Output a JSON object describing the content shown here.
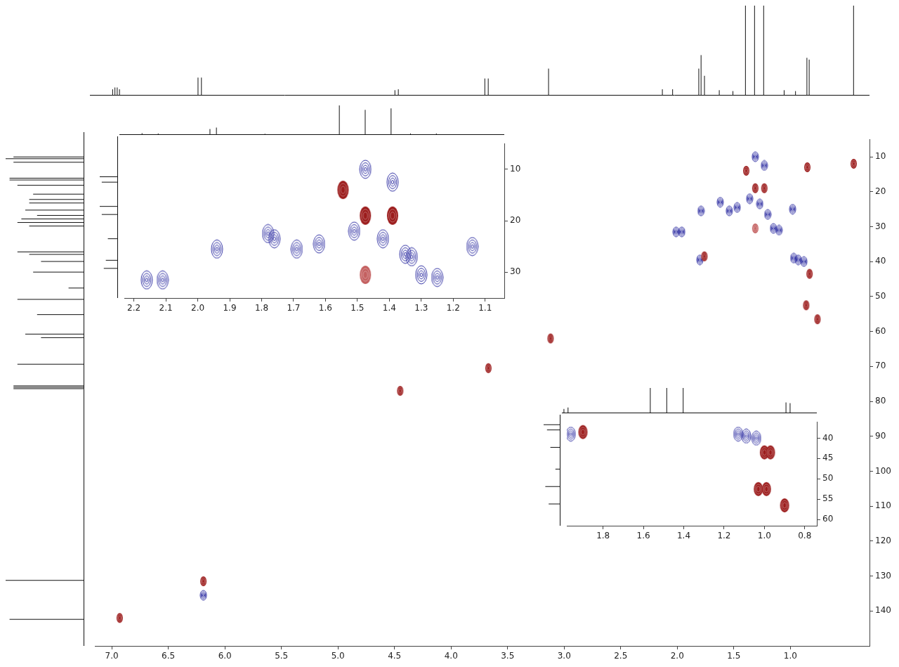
{
  "chart_data": [
    {
      "type": "scatter",
      "grid": false,
      "xlim": [
        7.15,
        0.3
      ],
      "ylim": [
        150,
        5
      ],
      "xticks": [
        {
          "value": 7,
          "label": "7.0"
        },
        6.5,
        {
          "value": 6,
          "label": "6.0"
        },
        5.5,
        {
          "value": 5,
          "label": "5.0"
        },
        4.5,
        {
          "value": 4,
          "label": "4.0"
        },
        3.5,
        {
          "value": 3,
          "label": "3.0"
        },
        2.5,
        {
          "value": 2,
          "label": "2.0"
        },
        1.5,
        {
          "value": 1,
          "label": "1.0"
        }
      ],
      "yticks": [
        10,
        20,
        30,
        40,
        50,
        60,
        70,
        80,
        90,
        100,
        110,
        120,
        130,
        140
      ],
      "series": [
        {
          "color": "#9c1c1c",
          "marker": "filled_ellipse",
          "x": [
            6.93,
            6.19,
            4.45,
            3.67,
            3.12,
            1.76,
            1.39,
            1.31,
            1.23,
            0.85,
            0.44,
            0.83,
            0.86,
            0.76
          ],
          "values": [
            142,
            131.5,
            77,
            70.5,
            62,
            38.5,
            14,
            19,
            19,
            13,
            12,
            43.5,
            52.5,
            56.5
          ]
        },
        {
          "color": "#c46060",
          "marker": "filled_ellipse",
          "x": [
            1.31
          ],
          "values": [
            30.5
          ]
        },
        {
          "color": "#3535a5",
          "marker": "open_ellipse",
          "x": [
            6.19,
            2.01,
            1.96,
            1.79,
            1.62,
            1.54,
            1.47,
            1.36,
            1.27,
            1.2,
            1.15,
            1.1,
            0.98,
            1.31,
            1.23,
            1.8,
            0.97,
            0.93,
            0.88
          ],
          "values": [
            135.5,
            31.5,
            31.5,
            25.5,
            23,
            25.5,
            24.5,
            22,
            23.5,
            26.5,
            30.5,
            31,
            25,
            10,
            12.5,
            39.5,
            39,
            39.5,
            40
          ]
        }
      ],
      "projection_top": {
        "x": [
          6.95,
          6.93,
          6.91,
          6.89,
          6.2,
          6.17,
          4.47,
          4.44,
          3.68,
          3.65,
          3.12,
          2.12,
          2.03,
          1.8,
          1.78,
          1.75,
          1.62,
          1.5,
          1.39,
          1.31,
          1.23,
          1.05,
          0.95,
          0.85,
          0.83,
          0.44
        ],
        "intensity": [
          0.07,
          0.09,
          0.09,
          0.07,
          0.2,
          0.2,
          0.06,
          0.07,
          0.19,
          0.19,
          0.3,
          0.07,
          0.07,
          0.3,
          0.45,
          0.22,
          0.06,
          0.05,
          1,
          1,
          1,
          0.06,
          0.05,
          0.42,
          0.4,
          1
        ]
      },
      "projection_left": {
        "y": [
          142.5,
          131.5,
          77.4,
          77,
          76.6,
          70.5,
          63,
          62,
          56.5,
          52.2,
          49,
          44.5,
          41.5,
          39.5,
          38.8,
          31.5,
          30.5,
          29.5,
          28.5,
          27,
          25,
          24,
          22.5,
          20,
          18.5,
          18,
          13.5,
          12.5,
          12
        ],
        "intensity": [
          0.95,
          1,
          0.9,
          0.9,
          0.9,
          0.85,
          0.55,
          0.75,
          0.6,
          0.85,
          0.2,
          0.65,
          0.55,
          0.7,
          0.85,
          0.7,
          0.85,
          0.8,
          0.6,
          0.75,
          0.7,
          0.7,
          0.65,
          0.85,
          0.95,
          0.95,
          0.9,
          1,
          0.9
        ]
      }
    },
    {
      "type": "scatter",
      "grid": false,
      "xlim": [
        2.23,
        1.04
      ],
      "ylim": [
        35,
        5
      ],
      "xticks": [
        2.2,
        2.1,
        {
          "value": 2,
          "label": "2.0"
        },
        1.9,
        1.8,
        1.7,
        1.6,
        1.5,
        1.4,
        1.3,
        1.2,
        1.1
      ],
      "yticks": [
        10,
        20,
        30
      ],
      "series": [
        {
          "color": "#9c1c1c",
          "marker": "filled_ellipse",
          "x": [
            1.545,
            1.475,
            1.39
          ],
          "values": [
            14,
            19,
            19
          ]
        },
        {
          "color": "#c46060",
          "marker": "filled_ellipse",
          "x": [
            1.475
          ],
          "values": [
            30.5
          ]
        },
        {
          "color": "#3535a5",
          "marker": "open_ellipse",
          "x": [
            1.475,
            1.39,
            2.16,
            2.11,
            1.94,
            1.78,
            1.76,
            1.69,
            1.62,
            1.51,
            1.42,
            1.35,
            1.33,
            1.3,
            1.25,
            1.14
          ],
          "values": [
            10,
            12.5,
            31.5,
            31.5,
            25.5,
            22.5,
            23.5,
            25.5,
            24.5,
            22,
            23.5,
            26.5,
            27,
            30.5,
            31,
            25
          ]
        }
      ],
      "projection_top": {
        "x": [
          2.16,
          2.11,
          1.95,
          1.93,
          1.78,
          1.55,
          1.47,
          1.39,
          1.33,
          1.25
        ],
        "intensity": [
          0.06,
          0.05,
          0.2,
          0.25,
          0.04,
          1,
          0.85,
          0.9,
          0.05,
          0.05
        ]
      },
      "projection_left": {
        "y": [
          12.5,
          13.5,
          18,
          19.5,
          24,
          28,
          29.5
        ],
        "intensity": [
          0.9,
          0.8,
          0.9,
          0.8,
          0.5,
          0.6,
          0.7
        ]
      }
    },
    {
      "type": "scatter",
      "grid": false,
      "xlim": [
        1.98,
        0.74
      ],
      "ylim": [
        61.5,
        36
      ],
      "xticks": [
        1.8,
        1.6,
        1.4,
        1.2,
        {
          "value": 1,
          "label": "1.0"
        },
        0.8
      ],
      "yticks": [
        40,
        45,
        50,
        55,
        60
      ],
      "series": [
        {
          "color": "#9c1c1c",
          "marker": "filled_ellipse",
          "x": [
            1.9,
            1.0,
            0.97,
            1.03,
            0.99,
            0.9
          ],
          "values": [
            38.5,
            43.5,
            43.5,
            52.5,
            52.5,
            56.5
          ]
        },
        {
          "color": "#3535a5",
          "marker": "open_ellipse",
          "x": [
            1.96,
            1.13,
            1.09,
            1.04
          ],
          "values": [
            39,
            39,
            39.5,
            40
          ]
        }
      ],
      "projection_top": {
        "x": [
          1.97,
          1.95,
          1.55,
          1.47,
          1.39,
          0.89,
          0.87
        ],
        "intensity": [
          0.12,
          0.16,
          0.7,
          0.7,
          0.7,
          0.3,
          0.28
        ]
      },
      "projection_left": {
        "y": [
          38.3,
          39.5,
          43.5,
          48.5,
          52.5,
          56.5
        ],
        "intensity": [
          1,
          0.8,
          0.6,
          0.3,
          0.9,
          0.7
        ]
      }
    }
  ]
}
